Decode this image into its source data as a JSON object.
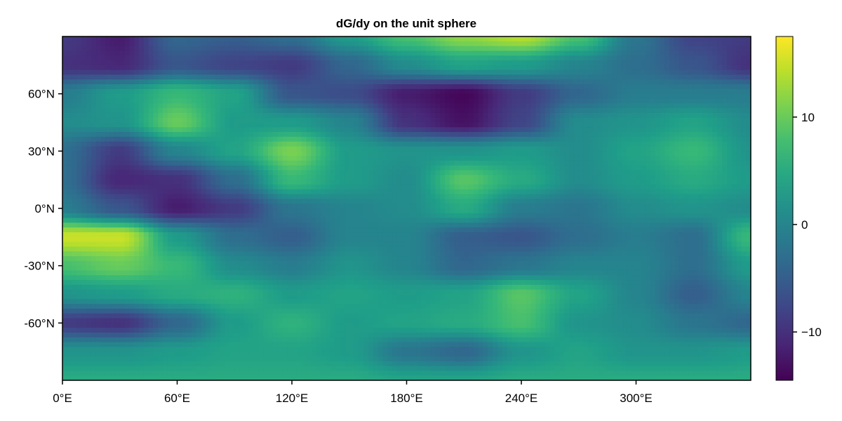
{
  "chart_data": {
    "type": "heatmap",
    "title": "dG/dy on the unit sphere",
    "xlabel": "",
    "ylabel": "",
    "x_range": [
      0,
      360
    ],
    "y_range": [
      -90,
      90
    ],
    "x_ticks": [
      {
        "value": 0,
        "label": "0°E"
      },
      {
        "value": 60,
        "label": "60°E"
      },
      {
        "value": 120,
        "label": "120°E"
      },
      {
        "value": 180,
        "label": "180°E"
      },
      {
        "value": 240,
        "label": "240°E"
      },
      {
        "value": 300,
        "label": "300°E"
      }
    ],
    "y_ticks": [
      {
        "value": 60,
        "label": "60°N"
      },
      {
        "value": 30,
        "label": "30°N"
      },
      {
        "value": 0,
        "label": "0°N"
      },
      {
        "value": -30,
        "label": "-30°N"
      },
      {
        "value": -60,
        "label": "-60°N"
      }
    ],
    "colormap": "viridis",
    "colorbar": {
      "range": [
        -14.5,
        17.5
      ],
      "ticks": [
        {
          "value": 10,
          "label": "10"
        },
        {
          "value": 0,
          "label": "0"
        },
        {
          "value": -10,
          "label": "−10"
        }
      ]
    },
    "grid_lon": [
      0,
      30,
      60,
      90,
      120,
      150,
      180,
      210,
      240,
      270,
      300,
      330,
      360
    ],
    "grid_lat": [
      90,
      75,
      60,
      45,
      30,
      15,
      0,
      -15,
      -30,
      -45,
      -60,
      -75,
      -90
    ],
    "values": [
      [
        -9,
        -12,
        -4,
        -5,
        -3,
        3,
        8,
        12,
        14,
        8,
        -2,
        -8,
        -9
      ],
      [
        -10,
        -11,
        -6,
        -8,
        -9,
        -4,
        1,
        4,
        3,
        0,
        -3,
        -6,
        -10
      ],
      [
        -1,
        3,
        7,
        4,
        -6,
        -7,
        -12,
        -14,
        -9,
        -4,
        -1,
        -1,
        -1
      ],
      [
        1,
        2,
        10,
        3,
        3,
        0,
        -10,
        -13,
        -8,
        1,
        2,
        4,
        1
      ],
      [
        -3,
        -9,
        0,
        4,
        11,
        3,
        2,
        2,
        3,
        1,
        4,
        7,
        2
      ],
      [
        -3,
        -11,
        -10,
        -3,
        7,
        3,
        1,
        9,
        5,
        1,
        3,
        5,
        3
      ],
      [
        -1,
        -6,
        -12,
        -9,
        -2,
        0,
        1,
        5,
        -1,
        -2,
        1,
        2,
        1
      ],
      [
        15,
        15,
        3,
        -3,
        -5,
        0,
        0,
        -5,
        -6,
        -3,
        -1,
        -3,
        7
      ],
      [
        8,
        10,
        7,
        1,
        -1,
        2,
        0,
        -4,
        -2,
        0,
        0,
        -3,
        3
      ],
      [
        2,
        3,
        5,
        6,
        3,
        4,
        3,
        4,
        9,
        4,
        0,
        -5,
        0
      ],
      [
        -9,
        -10,
        -4,
        3,
        6,
        3,
        4,
        5,
        8,
        2,
        1,
        -2,
        -4
      ],
      [
        2,
        2,
        3,
        4,
        4,
        3,
        -2,
        -4,
        2,
        4,
        2,
        2,
        3
      ],
      [
        5,
        5,
        5,
        5,
        5,
        5,
        4,
        4,
        5,
        5,
        5,
        5,
        5
      ]
    ]
  }
}
